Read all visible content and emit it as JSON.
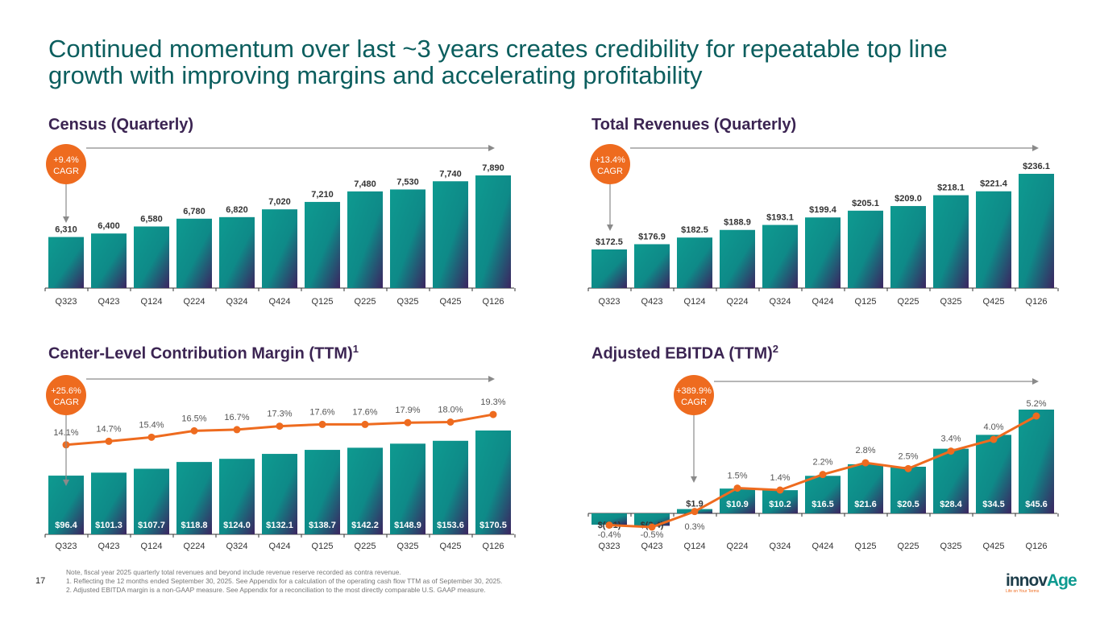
{
  "title": "Continued momentum over last ~3 years creates credibility for repeatable top line growth with improving margins and accelerating profitability",
  "page_number": "17",
  "footnotes": [
    "Note, fiscal year 2025 quarterly total revenues and beyond include revenue reserve recorded as contra revenue.",
    "1.  Reflecting the 12 months ended September 30, 2025. See Appendix for a calculation of the operating cash flow TTM as of September 30, 2025.",
    "2.  Adjusted EBITDA margin is a non-GAAP measure. See Appendix for a reconciliation to the most directly comparable U.S. GAAP measure."
  ],
  "logo": {
    "text_part1": "innov",
    "text_part2": "Age",
    "tagline": "Life on Your Terms"
  },
  "colors": {
    "teal": "#0e9a90",
    "purple": "#3b2452",
    "orange": "#ee6b1f",
    "title_teal": "#0b5e5e",
    "arrow_gray": "#8a8a8a"
  },
  "chart_data": [
    {
      "id": "census",
      "type": "bar",
      "title": "Census (Quarterly)",
      "title_sup": "",
      "categories": [
        "Q323",
        "Q423",
        "Q124",
        "Q224",
        "Q324",
        "Q424",
        "Q125",
        "Q225",
        "Q325",
        "Q425",
        "Q126"
      ],
      "values": [
        6310,
        6400,
        6580,
        6780,
        6820,
        7020,
        7210,
        7480,
        7530,
        7740,
        7890
      ],
      "value_labels": [
        "6,310",
        "6,400",
        "6,580",
        "6,780",
        "6,820",
        "7,020",
        "7,210",
        "7,480",
        "7,530",
        "7,740",
        "7,890"
      ],
      "cagr_label": [
        "+9.4%",
        "CAGR"
      ],
      "label_position": "above",
      "ylim": [
        5000,
        8000
      ]
    },
    {
      "id": "revenue",
      "type": "bar",
      "title": "Total Revenues (Quarterly)",
      "title_sup": "",
      "categories": [
        "Q323",
        "Q423",
        "Q124",
        "Q224",
        "Q324",
        "Q424",
        "Q125",
        "Q225",
        "Q325",
        "Q425",
        "Q126"
      ],
      "values": [
        172.5,
        176.9,
        182.5,
        188.9,
        193.1,
        199.4,
        205.1,
        209.0,
        218.1,
        221.4,
        236.1
      ],
      "value_labels": [
        "$172.5",
        "$176.9",
        "$182.5",
        "$188.9",
        "$193.1",
        "$199.4",
        "$205.1",
        "$209.0",
        "$218.1",
        "$221.4",
        "$236.1"
      ],
      "cagr_label": [
        "+13.4%",
        "CAGR"
      ],
      "label_position": "above",
      "ylim": [
        140,
        240
      ]
    },
    {
      "id": "contribution",
      "type": "bar",
      "title": "Center-Level Contribution Margin (TTM)",
      "title_sup": "1",
      "categories": [
        "Q323",
        "Q423",
        "Q124",
        "Q224",
        "Q324",
        "Q424",
        "Q125",
        "Q225",
        "Q325",
        "Q425",
        "Q126"
      ],
      "values": [
        96.4,
        101.3,
        107.7,
        118.8,
        124.0,
        132.1,
        138.7,
        142.2,
        148.9,
        153.6,
        170.5
      ],
      "value_labels": [
        "$96.4",
        "$101.3",
        "$107.7",
        "$118.8",
        "$124.0",
        "$132.1",
        "$138.7",
        "$142.2",
        "$148.9",
        "$153.6",
        "$170.5"
      ],
      "line_series": {
        "name": "Margin %",
        "values": [
          14.1,
          14.7,
          15.4,
          16.5,
          16.7,
          17.3,
          17.6,
          17.6,
          17.9,
          18.0,
          19.3
        ],
        "labels": [
          "14.1%",
          "14.7%",
          "15.4%",
          "16.5%",
          "16.7%",
          "17.3%",
          "17.6%",
          "17.6%",
          "17.9%",
          "18.0%",
          "19.3%"
        ]
      },
      "cagr_label": [
        "+25.6%",
        "CAGR"
      ],
      "label_position": "inside",
      "ylim": [
        0,
        200
      ]
    },
    {
      "id": "ebitda",
      "type": "bar",
      "title": "Adjusted EBITDA (TTM)",
      "title_sup": "2",
      "categories": [
        "Q323",
        "Q423",
        "Q124",
        "Q224",
        "Q324",
        "Q424",
        "Q125",
        "Q225",
        "Q325",
        "Q425",
        "Q126"
      ],
      "values": [
        -3.1,
        -3.4,
        1.9,
        10.9,
        10.2,
        16.5,
        21.6,
        20.5,
        28.4,
        34.5,
        45.6
      ],
      "value_labels": [
        "$(3.1)",
        "$(3.4)",
        "$1.9",
        "$10.9",
        "$10.2",
        "$16.5",
        "$21.6",
        "$20.5",
        "$28.4",
        "$34.5",
        "$45.6"
      ],
      "line_series": {
        "name": "Margin %",
        "values": [
          -0.4,
          -0.5,
          0.3,
          1.5,
          1.4,
          2.2,
          2.8,
          2.5,
          3.4,
          4.0,
          5.2
        ],
        "labels": [
          "-0.4%",
          "-0.5%",
          "0.3%",
          "1.5%",
          "1.4%",
          "2.2%",
          "2.8%",
          "2.5%",
          "3.4%",
          "4.0%",
          "5.2%"
        ]
      },
      "cagr_label": [
        "+389.9%",
        "CAGR"
      ],
      "label_position": "inside",
      "ylim": [
        -5,
        50
      ]
    }
  ]
}
